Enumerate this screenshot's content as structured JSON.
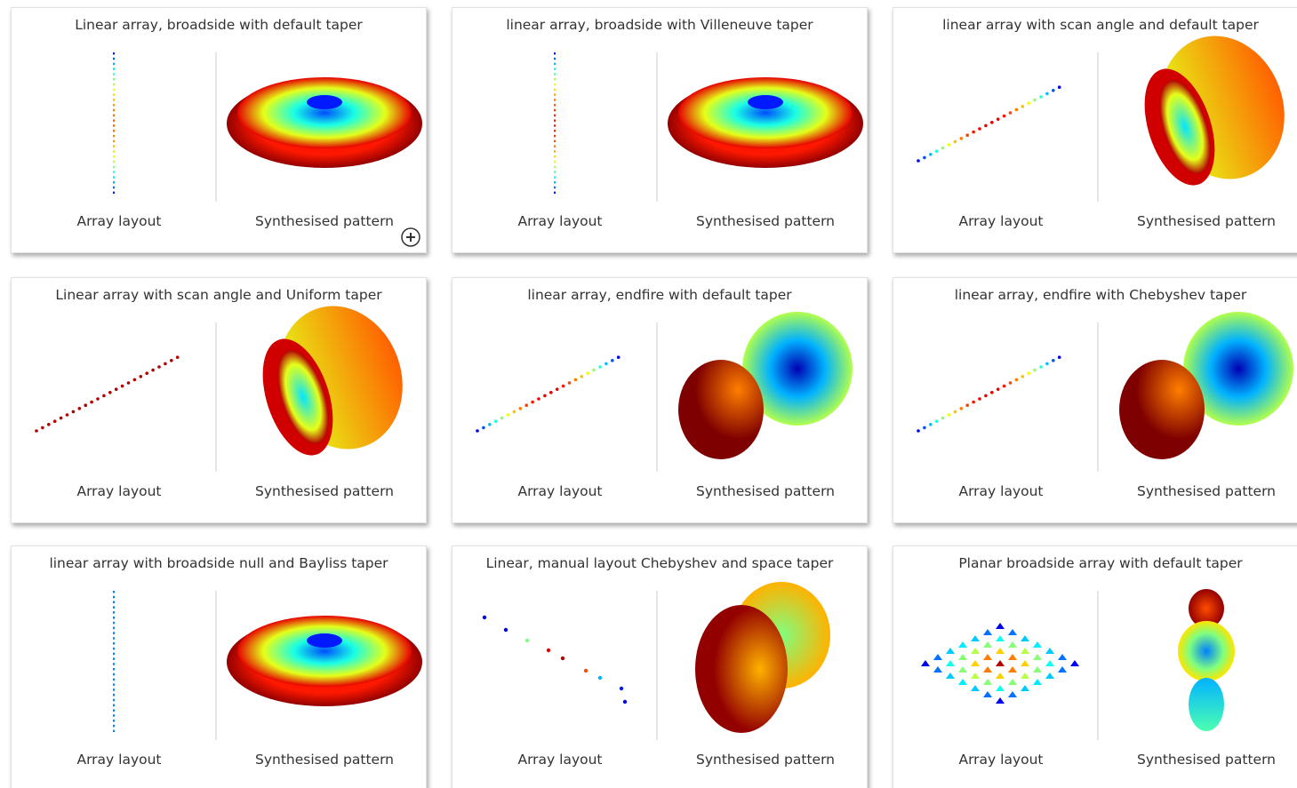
{
  "cards": [
    {
      "title": "Linear array, broadside with default taper",
      "left_caption": "Array layout",
      "right_caption": "Synthesised pattern"
    },
    {
      "title": "linear array, broadside with Villeneuve taper",
      "left_caption": "Array layout",
      "right_caption": "Synthesised pattern"
    },
    {
      "title": "linear array with scan angle and default taper",
      "left_caption": "Array layout",
      "right_caption": "Synthesised pattern"
    },
    {
      "title": "Linear array with scan angle and Uniform taper",
      "left_caption": "Array layout",
      "right_caption": "Synthesised pattern"
    },
    {
      "title": "linear array, endfire with default taper",
      "left_caption": "Array layout",
      "right_caption": "Synthesised pattern"
    },
    {
      "title": "linear array, endfire with Chebyshev taper",
      "left_caption": "Array layout",
      "right_caption": "Synthesised pattern"
    },
    {
      "title": "linear array with broadside null and Bayliss taper",
      "left_caption": "Array layout",
      "right_caption": "Synthesised pattern"
    },
    {
      "title": "Linear, manual layout Chebyshev and space taper",
      "left_caption": "Array layout",
      "right_caption": "Synthesised pattern"
    },
    {
      "title": "Planar broadside array with default taper",
      "left_caption": "Array layout",
      "right_caption": "Synthesised pattern"
    }
  ]
}
